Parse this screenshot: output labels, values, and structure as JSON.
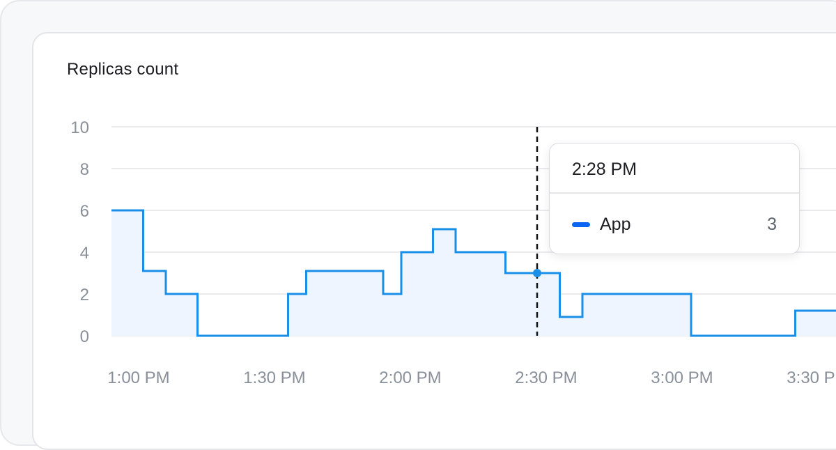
{
  "title": "Replicas count",
  "colors": {
    "line": "#1a8fe8",
    "fill": "#eef5ff",
    "grid": "#e2e4e8",
    "crosshair": "#111111",
    "legend_swatch": "#0a66f0"
  },
  "tooltip": {
    "time": "2:28 PM",
    "series_name": "App",
    "series_value": "3"
  },
  "chart_data": {
    "type": "line",
    "step": true,
    "title": "Replicas count",
    "xlabel": "",
    "ylabel": "",
    "ylim": [
      0,
      10
    ],
    "yticks": [
      0,
      2,
      4,
      6,
      8,
      10
    ],
    "xlim": [
      "12:54 PM",
      "3:34 PM"
    ],
    "xticks": [
      "1:00 PM",
      "1:30 PM",
      "2:00 PM",
      "2:30 PM",
      "3:00 PM",
      "3:30 PM"
    ],
    "grid": true,
    "fill_under": true,
    "crosshair_at": "2:28 PM",
    "series": [
      {
        "name": "App",
        "points": [
          [
            "12:54 PM",
            6
          ],
          [
            "1:01 PM",
            3.1
          ],
          [
            "1:06 PM",
            2
          ],
          [
            "1:13 PM",
            0
          ],
          [
            "1:33 PM",
            2
          ],
          [
            "1:37 PM",
            3.1
          ],
          [
            "1:54 PM",
            2
          ],
          [
            "1:58 PM",
            4
          ],
          [
            "2:05 PM",
            5.1
          ],
          [
            "2:10 PM",
            4
          ],
          [
            "2:21 PM",
            3
          ],
          [
            "2:33 PM",
            0.9
          ],
          [
            "2:38 PM",
            2
          ],
          [
            "3:02 PM",
            0
          ],
          [
            "3:25 PM",
            1.2
          ]
        ]
      }
    ]
  }
}
